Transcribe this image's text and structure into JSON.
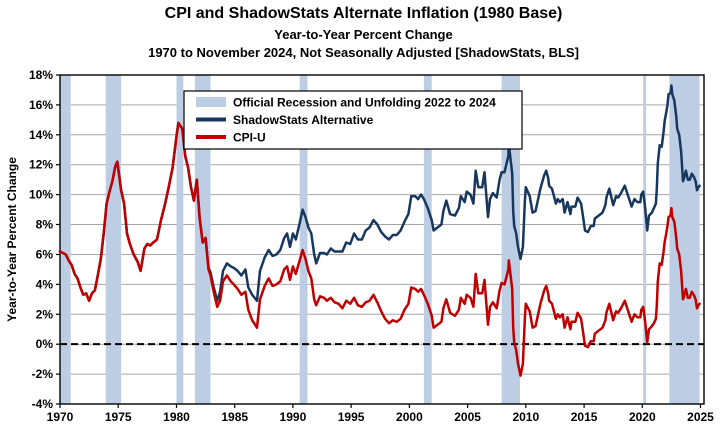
{
  "title": {
    "line1": "CPI and ShadowStats Alternate Inflation (1980 Base)",
    "line2": "Year-to-Year Percent Change",
    "line3": "1970 to November 2024, Not Seasonally Adjusted  [ShadowStats, BLS]"
  },
  "y_axis_title": "Year-to-Year Percent Change",
  "colors": {
    "shadowstats": "#17375E",
    "cpiu": "#C00000",
    "recession_band": "#BDCEE4",
    "gridline": "#A6A6A6",
    "axis": "#000000",
    "zero_line": "#000000",
    "background": "#FFFFFF"
  },
  "legend": {
    "entries": [
      {
        "label": "Official Recession and Unfolding 2022 to 2024",
        "swatch": "band"
      },
      {
        "label": "ShadowStats Alternative",
        "swatch": "shadow"
      },
      {
        "label": "CPI-U",
        "swatch": "cpi"
      }
    ]
  },
  "chart_data": {
    "type": "line",
    "title": "CPI and ShadowStats Alternate Inflation (1980 Base)",
    "subtitle": "Year-to-Year Percent Change, 1970 to November 2024, Not Seasonally Adjusted [ShadowStats, BLS]",
    "xlabel": "",
    "ylabel": "Year-to-Year Percent Change",
    "xlim": [
      1970,
      2025.3
    ],
    "ylim": [
      -4,
      18
    ],
    "grid": "horizontal",
    "legend_position": "top-center-inside",
    "x_ticks": [
      {
        "v": 1970,
        "label": "1970"
      },
      {
        "v": 1975,
        "label": "1975"
      },
      {
        "v": 1980,
        "label": "1980"
      },
      {
        "v": 1985,
        "label": "1985"
      },
      {
        "v": 1990,
        "label": "1990"
      },
      {
        "v": 1995,
        "label": "1995"
      },
      {
        "v": 2000,
        "label": "2000"
      },
      {
        "v": 2005,
        "label": "2005"
      },
      {
        "v": 2010,
        "label": "2010"
      },
      {
        "v": 2015,
        "label": "2015"
      },
      {
        "v": 2020,
        "label": "2020"
      },
      {
        "v": 2025,
        "label": "2025"
      }
    ],
    "y_ticks": [
      {
        "v": -4,
        "label": "-4%"
      },
      {
        "v": -2,
        "label": "-2%"
      },
      {
        "v": 0,
        "label": "0%"
      },
      {
        "v": 2,
        "label": "2%"
      },
      {
        "v": 4,
        "label": "4%"
      },
      {
        "v": 6,
        "label": "6%"
      },
      {
        "v": 8,
        "label": "8%"
      },
      {
        "v": 10,
        "label": "10%"
      },
      {
        "v": 12,
        "label": "12%"
      },
      {
        "v": 14,
        "label": "14%"
      },
      {
        "v": 16,
        "label": "16%"
      },
      {
        "v": 18,
        "label": "18%"
      }
    ],
    "recession_bands": [
      [
        1970.0,
        1970.92
      ],
      [
        1973.92,
        1975.25
      ],
      [
        1980.0,
        1980.58
      ],
      [
        1981.58,
        1982.92
      ],
      [
        1990.58,
        1991.25
      ],
      [
        2001.25,
        2001.92
      ],
      [
        2007.92,
        2009.5
      ],
      [
        2020.08,
        2020.33
      ],
      [
        2022.33,
        2024.92
      ]
    ],
    "series_names": [
      "ShadowStats Alternative",
      "CPI-U"
    ],
    "points_format": [
      "year",
      "cpiu_pct",
      "shadowstats_pct"
    ],
    "points": [
      [
        1970,
        6.2,
        6.2
      ],
      [
        1970.25,
        6.1,
        6.1
      ],
      [
        1970.5,
        6,
        6
      ],
      [
        1970.75,
        5.6,
        5.6
      ],
      [
        1971,
        5.3,
        5.3
      ],
      [
        1971.25,
        4.7,
        4.7
      ],
      [
        1971.5,
        4.4,
        4.4
      ],
      [
        1971.75,
        3.8,
        3.8
      ],
      [
        1972,
        3.3,
        3.3
      ],
      [
        1972.25,
        3.4,
        3.4
      ],
      [
        1972.5,
        2.9,
        2.9
      ],
      [
        1972.75,
        3.4,
        3.4
      ],
      [
        1973,
        3.6,
        3.6
      ],
      [
        1973.25,
        4.6,
        4.6
      ],
      [
        1973.5,
        5.7,
        5.7
      ],
      [
        1973.75,
        7.4,
        7.4
      ],
      [
        1974,
        9.4,
        9.4
      ],
      [
        1974.25,
        10.2,
        10.2
      ],
      [
        1974.5,
        10.9,
        10.9
      ],
      [
        1974.75,
        11.9,
        11.9
      ],
      [
        1974.92,
        12.2,
        12.2
      ],
      [
        1975.25,
        10.3,
        10.3
      ],
      [
        1975.5,
        9.4,
        9.4
      ],
      [
        1975.75,
        7.4,
        7.4
      ],
      [
        1976,
        6.7,
        6.7
      ],
      [
        1976.33,
        6,
        6
      ],
      [
        1976.67,
        5.5,
        5.5
      ],
      [
        1976.92,
        4.9,
        4.9
      ],
      [
        1977.25,
        6.4,
        6.4
      ],
      [
        1977.5,
        6.7,
        6.7
      ],
      [
        1977.75,
        6.6,
        6.6
      ],
      [
        1978,
        6.8,
        6.8
      ],
      [
        1978.33,
        7,
        7
      ],
      [
        1978.67,
        8.3,
        8.3
      ],
      [
        1979,
        9.3,
        9.3
      ],
      [
        1979.33,
        10.5,
        10.5
      ],
      [
        1979.67,
        11.8,
        11.8
      ],
      [
        1980,
        13.9,
        13.9
      ],
      [
        1980.17,
        14.8,
        14.8
      ],
      [
        1980.5,
        14.4,
        14.4
      ],
      [
        1980.75,
        12.6,
        12.6
      ],
      [
        1981,
        11.8,
        11.8
      ],
      [
        1981.25,
        10.5,
        10.5
      ],
      [
        1981.5,
        9.6,
        9.6
      ],
      [
        1981.75,
        11,
        11
      ],
      [
        1982,
        8.4,
        8.4
      ],
      [
        1982.25,
        6.8,
        6.8
      ],
      [
        1982.5,
        7.1,
        7.1
      ],
      [
        1982.75,
        5,
        5.1
      ],
      [
        1982.92,
        4.6,
        4.8
      ],
      [
        1983.17,
        3.6,
        3.9
      ],
      [
        1983.5,
        2.5,
        2.9
      ],
      [
        1983.75,
        2.9,
        3.5
      ],
      [
        1984,
        4.2,
        4.9
      ],
      [
        1984.33,
        4.6,
        5.4
      ],
      [
        1984.67,
        4.2,
        5.2
      ],
      [
        1984.92,
        4,
        5.1
      ],
      [
        1985.25,
        3.7,
        4.9
      ],
      [
        1985.58,
        3.3,
        4.6
      ],
      [
        1985.92,
        3.5,
        5
      ],
      [
        1986.17,
        2.3,
        3.8
      ],
      [
        1986.5,
        1.6,
        3.3
      ],
      [
        1986.92,
        1.1,
        2.9
      ],
      [
        1987.17,
        3,
        4.9
      ],
      [
        1987.58,
        3.9,
        5.8
      ],
      [
        1987.92,
        4.4,
        6.3
      ],
      [
        1988.25,
        3.9,
        5.9
      ],
      [
        1988.58,
        4,
        6
      ],
      [
        1988.92,
        4.2,
        6.3
      ],
      [
        1989.25,
        5,
        7.1
      ],
      [
        1989.5,
        5.2,
        7.4
      ],
      [
        1989.75,
        4.3,
        6.5
      ],
      [
        1990,
        5.2,
        7.4
      ],
      [
        1990.25,
        4.7,
        7
      ],
      [
        1990.58,
        5.6,
        8.1
      ],
      [
        1990.83,
        6.3,
        9
      ],
      [
        1991.08,
        5.7,
        8.5
      ],
      [
        1991.33,
        4.9,
        7.8
      ],
      [
        1991.58,
        4.4,
        7.4
      ],
      [
        1991.83,
        3,
        6
      ],
      [
        1992,
        2.6,
        5.4
      ],
      [
        1992.33,
        3.2,
        6.1
      ],
      [
        1992.67,
        3.1,
        6.1
      ],
      [
        1992.92,
        2.9,
        6
      ],
      [
        1993.25,
        3.1,
        6.4
      ],
      [
        1993.58,
        2.8,
        6.2
      ],
      [
        1993.92,
        2.7,
        6.2
      ],
      [
        1994.25,
        2.4,
        6.2
      ],
      [
        1994.58,
        2.9,
        6.8
      ],
      [
        1994.92,
        2.7,
        6.7
      ],
      [
        1995.25,
        3.1,
        7.4
      ],
      [
        1995.58,
        2.6,
        7
      ],
      [
        1995.92,
        2.5,
        7
      ],
      [
        1996.25,
        2.8,
        7.6
      ],
      [
        1996.58,
        2.9,
        7.8
      ],
      [
        1996.92,
        3.3,
        8.3
      ],
      [
        1997.25,
        2.8,
        8
      ],
      [
        1997.58,
        2.2,
        7.5
      ],
      [
        1997.92,
        1.7,
        7.2
      ],
      [
        1998.25,
        1.4,
        7
      ],
      [
        1998.58,
        1.6,
        7.3
      ],
      [
        1998.92,
        1.5,
        7.3
      ],
      [
        1999.25,
        1.7,
        7.6
      ],
      [
        1999.58,
        2.3,
        8.2
      ],
      [
        1999.92,
        2.7,
        8.7
      ],
      [
        2000.17,
        3.8,
        9.9
      ],
      [
        2000.5,
        3.7,
        9.9
      ],
      [
        2000.75,
        3.5,
        9.7
      ],
      [
        2001,
        3.7,
        10
      ],
      [
        2001.25,
        3.3,
        9.7
      ],
      [
        2001.58,
        2.7,
        9.1
      ],
      [
        2001.92,
        1.9,
        8.3
      ],
      [
        2002.08,
        1.1,
        7.6
      ],
      [
        2002.42,
        1.3,
        7.8
      ],
      [
        2002.75,
        1.5,
        8
      ],
      [
        2002.92,
        2.4,
        8.9
      ],
      [
        2003.17,
        3,
        9.6
      ],
      [
        2003.5,
        2.1,
        8.7
      ],
      [
        2003.92,
        1.9,
        8.6
      ],
      [
        2004.25,
        2.3,
        9.1
      ],
      [
        2004.42,
        3.1,
        9.9
      ],
      [
        2004.75,
        2.7,
        9.5
      ],
      [
        2004.92,
        3.3,
        10.2
      ],
      [
        2005.25,
        3.1,
        10
      ],
      [
        2005.5,
        2.5,
        9.4
      ],
      [
        2005.7,
        4.7,
        11.6
      ],
      [
        2005.92,
        3.4,
        10.5
      ],
      [
        2006.25,
        3.4,
        10.5
      ],
      [
        2006.45,
        4.3,
        11.5
      ],
      [
        2006.75,
        1.3,
        8.5
      ],
      [
        2006.92,
        2.5,
        9.7
      ],
      [
        2007.17,
        2.8,
        10.1
      ],
      [
        2007.5,
        2.4,
        9.8
      ],
      [
        2007.75,
        3.6,
        11
      ],
      [
        2007.92,
        4.1,
        11.5
      ],
      [
        2008.17,
        4,
        11.5
      ],
      [
        2008.5,
        5,
        12.6
      ],
      [
        2008.54,
        5.6,
        13.4
      ],
      [
        2008.83,
        3.7,
        11.4
      ],
      [
        2008.92,
        1.1,
        8.9
      ],
      [
        2009,
        0.1,
        7.9
      ],
      [
        2009.17,
        -0.4,
        7.4
      ],
      [
        2009.33,
        -1.3,
        6.5
      ],
      [
        2009.54,
        -2.1,
        5.7
      ],
      [
        2009.75,
        -1.3,
        6.5
      ],
      [
        2009.92,
        1.8,
        9.6
      ],
      [
        2010,
        2.7,
        10.5
      ],
      [
        2010.33,
        2.2,
        9.9
      ],
      [
        2010.58,
        1.1,
        8.8
      ],
      [
        2010.83,
        1.2,
        8.9
      ],
      [
        2010.92,
        1.5,
        9.2
      ],
      [
        2011.25,
        2.7,
        10.4
      ],
      [
        2011.58,
        3.6,
        11.3
      ],
      [
        2011.75,
        3.9,
        11.6
      ],
      [
        2011.92,
        3.4,
        11.1
      ],
      [
        2012,
        2.9,
        10.6
      ],
      [
        2012.25,
        2.7,
        10.4
      ],
      [
        2012.58,
        1.7,
        9.4
      ],
      [
        2012.75,
        2,
        9.7
      ],
      [
        2012.92,
        1.8,
        9.5
      ],
      [
        2013.17,
        2,
        9.7
      ],
      [
        2013.33,
        1.1,
        8.8
      ],
      [
        2013.58,
        1.8,
        9.5
      ],
      [
        2013.83,
        1,
        8.7
      ],
      [
        2013.92,
        1.5,
        9.2
      ],
      [
        2014.25,
        1.5,
        9.2
      ],
      [
        2014.45,
        2.1,
        9.8
      ],
      [
        2014.75,
        1.7,
        9.4
      ],
      [
        2014.92,
        0.8,
        8.5
      ],
      [
        2015.08,
        -0.1,
        7.6
      ],
      [
        2015.33,
        -0.2,
        7.5
      ],
      [
        2015.58,
        0.2,
        7.9
      ],
      [
        2015.83,
        0.2,
        7.9
      ],
      [
        2015.92,
        0.7,
        8.4
      ],
      [
        2016.25,
        0.9,
        8.6
      ],
      [
        2016.58,
        1.1,
        8.8
      ],
      [
        2016.83,
        1.6,
        9.3
      ],
      [
        2016.92,
        2.1,
        9.8
      ],
      [
        2017.08,
        2.5,
        10.2
      ],
      [
        2017.17,
        2.7,
        10.4
      ],
      [
        2017.5,
        1.6,
        9.3
      ],
      [
        2017.75,
        2.2,
        9.9
      ],
      [
        2017.92,
        2.1,
        9.8
      ],
      [
        2018.17,
        2.4,
        10.1
      ],
      [
        2018.5,
        2.9,
        10.6
      ],
      [
        2018.75,
        2.3,
        10
      ],
      [
        2018.92,
        1.9,
        9.6
      ],
      [
        2019.08,
        1.5,
        9.2
      ],
      [
        2019.33,
        2,
        9.7
      ],
      [
        2019.58,
        1.8,
        9.5
      ],
      [
        2019.83,
        1.8,
        9.5
      ],
      [
        2019.92,
        2.3,
        10
      ],
      [
        2020.08,
        2.5,
        10.2
      ],
      [
        2020.25,
        1.5,
        9.1
      ],
      [
        2020.42,
        0.1,
        7.6
      ],
      [
        2020.58,
        1,
        8.6
      ],
      [
        2020.83,
        1.2,
        8.8
      ],
      [
        2021,
        1.4,
        9.1
      ],
      [
        2021.17,
        1.7,
        9.4
      ],
      [
        2021.25,
        2.6,
        10.4
      ],
      [
        2021.33,
        4.2,
        12.1
      ],
      [
        2021.5,
        5.4,
        13.3
      ],
      [
        2021.67,
        5.3,
        13.2
      ],
      [
        2021.83,
        6.2,
        14.2
      ],
      [
        2021.92,
        6.8,
        14.9
      ],
      [
        2022.08,
        7.5,
        15.6
      ],
      [
        2022.17,
        7.9,
        16
      ],
      [
        2022.25,
        8.5,
        16.7
      ],
      [
        2022.42,
        8.6,
        16.8
      ],
      [
        2022.5,
        9.1,
        17.3
      ],
      [
        2022.58,
        8.5,
        16.7
      ],
      [
        2022.75,
        8.2,
        16.3
      ],
      [
        2022.92,
        7.1,
        15.2
      ],
      [
        2023,
        6.4,
        14.4
      ],
      [
        2023.17,
        6,
        14
      ],
      [
        2023.33,
        4.9,
        12.9
      ],
      [
        2023.5,
        3,
        10.9
      ],
      [
        2023.58,
        3.2,
        11.1
      ],
      [
        2023.75,
        3.7,
        11.6
      ],
      [
        2023.92,
        3.1,
        11
      ],
      [
        2024.08,
        3.1,
        11
      ],
      [
        2024.25,
        3.5,
        11.4
      ],
      [
        2024.42,
        3.3,
        11.2
      ],
      [
        2024.58,
        3,
        10.9
      ],
      [
        2024.7,
        2.4,
        10.3
      ],
      [
        2024.83,
        2.6,
        10.5
      ],
      [
        2024.92,
        2.7,
        10.6
      ]
    ]
  }
}
